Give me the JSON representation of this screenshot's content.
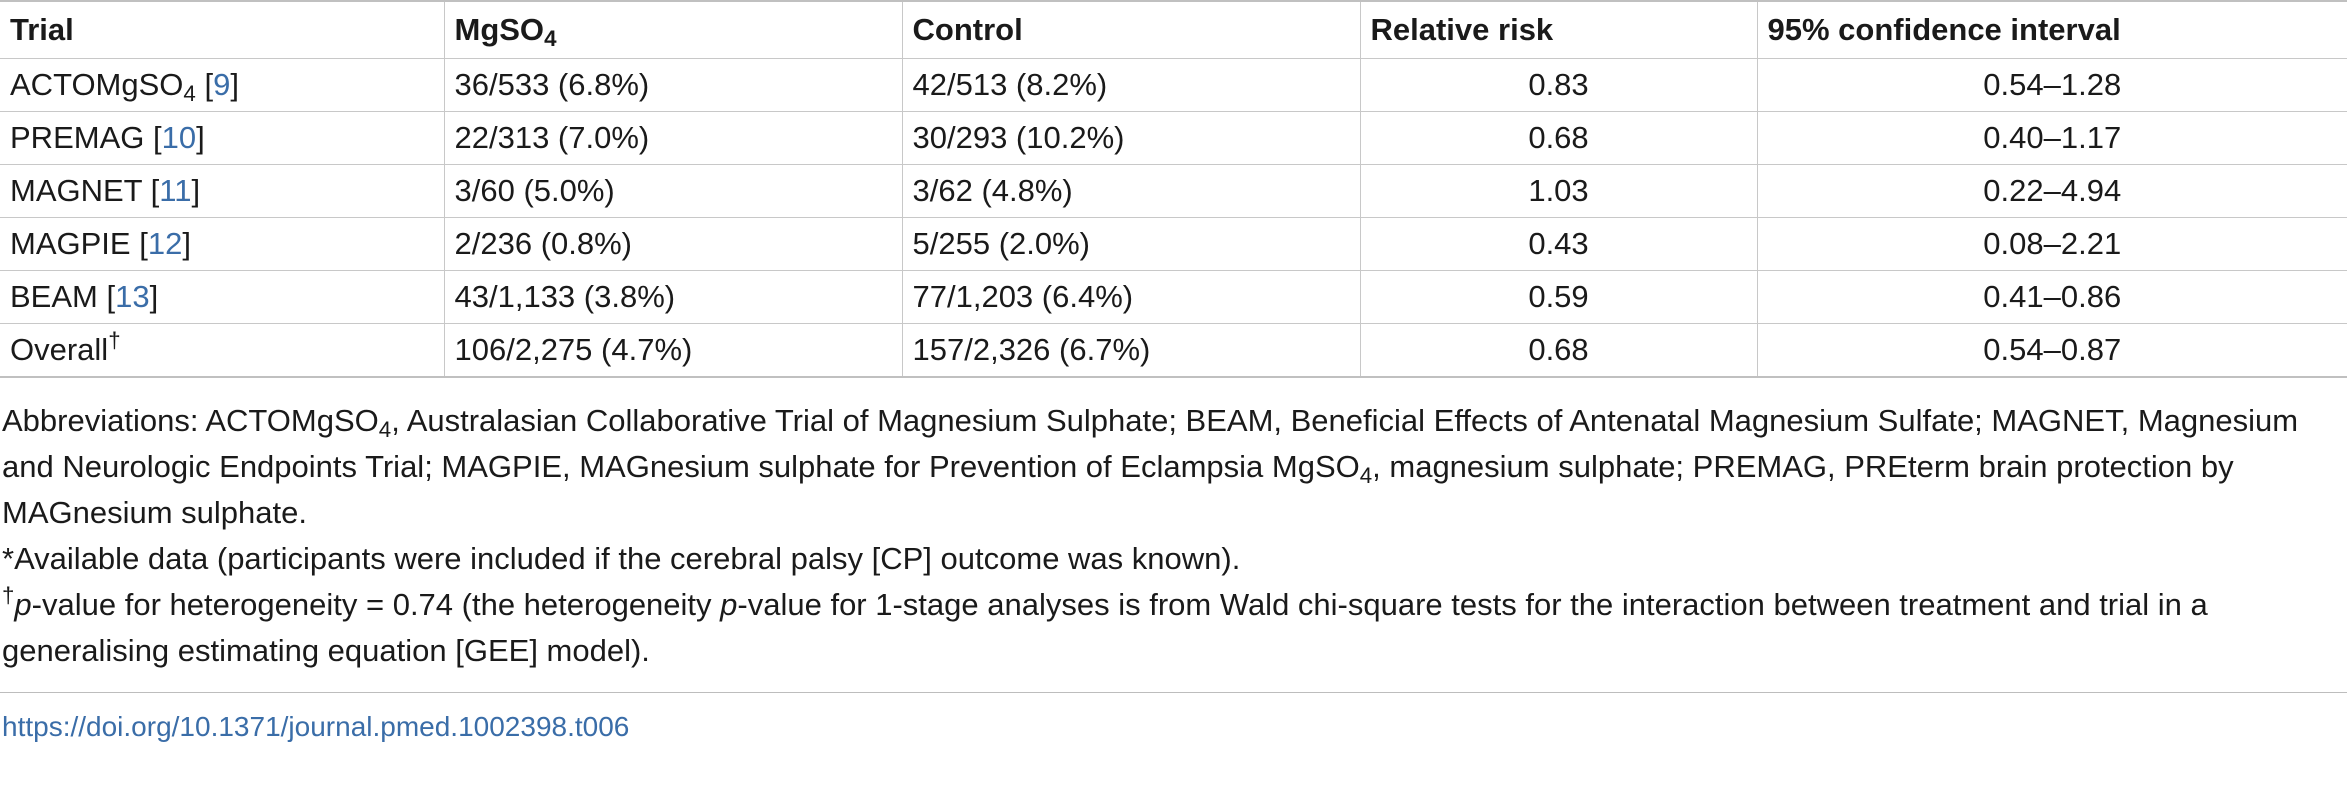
{
  "table": {
    "headers": {
      "trial": "Trial",
      "mgso4_base": "MgSO",
      "mgso4_sub": "4",
      "control": "Control",
      "relative_risk": "Relative risk",
      "ci": "95% confidence interval"
    },
    "rows": [
      {
        "trial_base": "ACTOMgSO",
        "trial_sub": "4",
        "ref": "9",
        "mgso4": "36/533 (6.8%)",
        "control": "42/513 (8.2%)",
        "rr": "0.83",
        "ci": "0.54–1.28"
      },
      {
        "trial_base": "PREMAG",
        "ref": "10",
        "mgso4": "22/313 (7.0%)",
        "control": "30/293 (10.2%)",
        "rr": "0.68",
        "ci": "0.40–1.17"
      },
      {
        "trial_base": "MAGNET",
        "ref": "11",
        "mgso4": "3/60 (5.0%)",
        "control": "3/62 (4.8%)",
        "rr": "1.03",
        "ci": "0.22–4.94"
      },
      {
        "trial_base": "MAGPIE",
        "ref": "12",
        "mgso4": "2/236 (0.8%)",
        "control": "5/255 (2.0%)",
        "rr": "0.43",
        "ci": "0.08–2.21"
      },
      {
        "trial_base": "BEAM",
        "ref": "13",
        "mgso4": "43/1,133 (3.8%)",
        "control": "77/1,203 (6.4%)",
        "rr": "0.59",
        "ci": "0.41–0.86"
      },
      {
        "trial_base": "Overall",
        "trial_sup": "†",
        "mgso4": "106/2,275 (4.7%)",
        "control": "157/2,326 (6.7%)",
        "rr": "0.68",
        "ci": "0.54–0.87"
      }
    ]
  },
  "footnotes": {
    "abbr_a": "Abbreviations: ACTOMgSO",
    "abbr_a_sub": "4",
    "abbr_b": ", Australasian Collaborative Trial of Magnesium Sulphate; BEAM, Beneficial Effects of Antenatal Magnesium Sulfate; MAGNET, Magnesium and Neurologic Endpoints Trial; MAGPIE, MAGnesium sulphate for Prevention of Eclampsia MgSO",
    "abbr_b_sub": "4",
    "abbr_c": ", magnesium sulphate; PREMAG, PREterm brain protection by MAGnesium sulphate.",
    "star": "*Available data (participants were included if the cerebral palsy [CP] outcome was known).",
    "dagger_mark": "†",
    "dagger_p1": "p",
    "dagger_t1": "-value for heterogeneity = 0.74 (the heterogeneity ",
    "dagger_p2": "p",
    "dagger_t2": "-value for 1-stage analyses is from Wald chi-square tests for the interaction between treatment and trial in a generalising estimating equation [GEE] model)."
  },
  "doi": "https://doi.org/10.1371/journal.pmed.1002398.t006"
}
